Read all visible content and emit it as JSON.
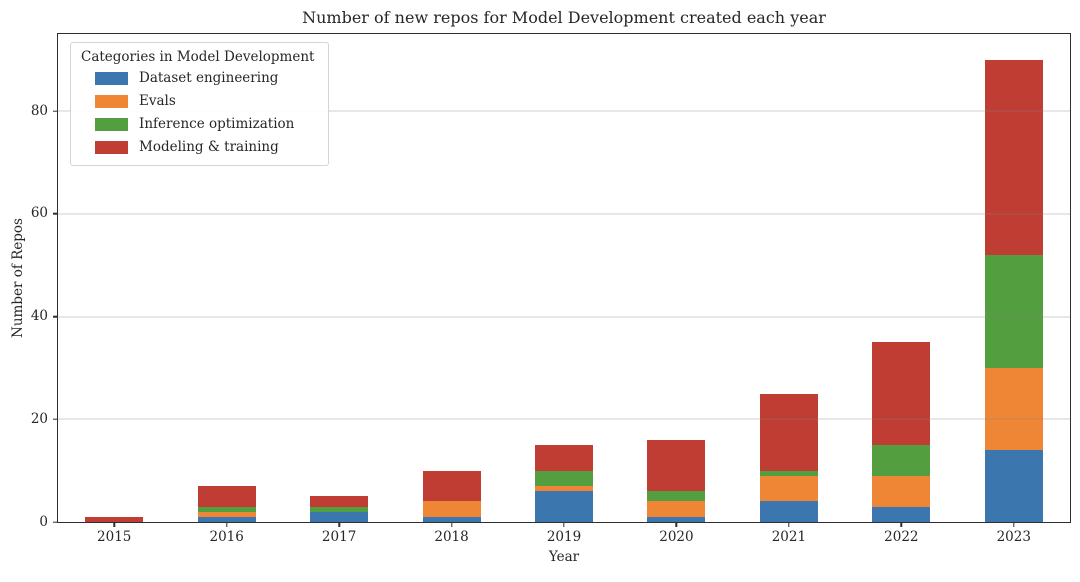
{
  "figure": {
    "title": "Number of new repos for Model Development created each year",
    "xlabel": "Year",
    "ylabel": "Number of Repos"
  },
  "legend": {
    "title": "Categories in Model Development",
    "position": "upper left"
  },
  "chart_data": {
    "type": "bar",
    "stacked": true,
    "title": "Number of new repos for Model Development created each year",
    "xlabel": "Year",
    "ylabel": "Number of Repos",
    "categories": [
      "2015",
      "2016",
      "2017",
      "2018",
      "2019",
      "2020",
      "2021",
      "2022",
      "2023"
    ],
    "series": [
      {
        "name": "Dataset engineering",
        "color": "#3b76af",
        "values": [
          0,
          1,
          2,
          1,
          6,
          1,
          4,
          3,
          14
        ]
      },
      {
        "name": "Evals",
        "color": "#ef8636",
        "values": [
          0,
          1,
          0,
          3,
          1,
          3,
          5,
          6,
          16
        ]
      },
      {
        "name": "Inference optimization",
        "color": "#539e3e",
        "values": [
          0,
          1,
          1,
          0,
          3,
          2,
          1,
          6,
          22
        ]
      },
      {
        "name": "Modeling & training",
        "color": "#c03d33",
        "values": [
          1,
          4,
          2,
          6,
          5,
          10,
          15,
          20,
          38
        ]
      }
    ],
    "totals": [
      1,
      7,
      5,
      10,
      15,
      16,
      25,
      35,
      90
    ],
    "yticks": [
      0,
      20,
      40,
      60,
      80
    ],
    "ylim": [
      0,
      95
    ],
    "grid": "horizontal",
    "legend_title": "Categories in Model Development",
    "legend_position": "upper left",
    "colors": {
      "spine": "#2e2e2e",
      "grid": "#cfcfcf",
      "text": "#262626",
      "background": "#ffffff"
    }
  }
}
